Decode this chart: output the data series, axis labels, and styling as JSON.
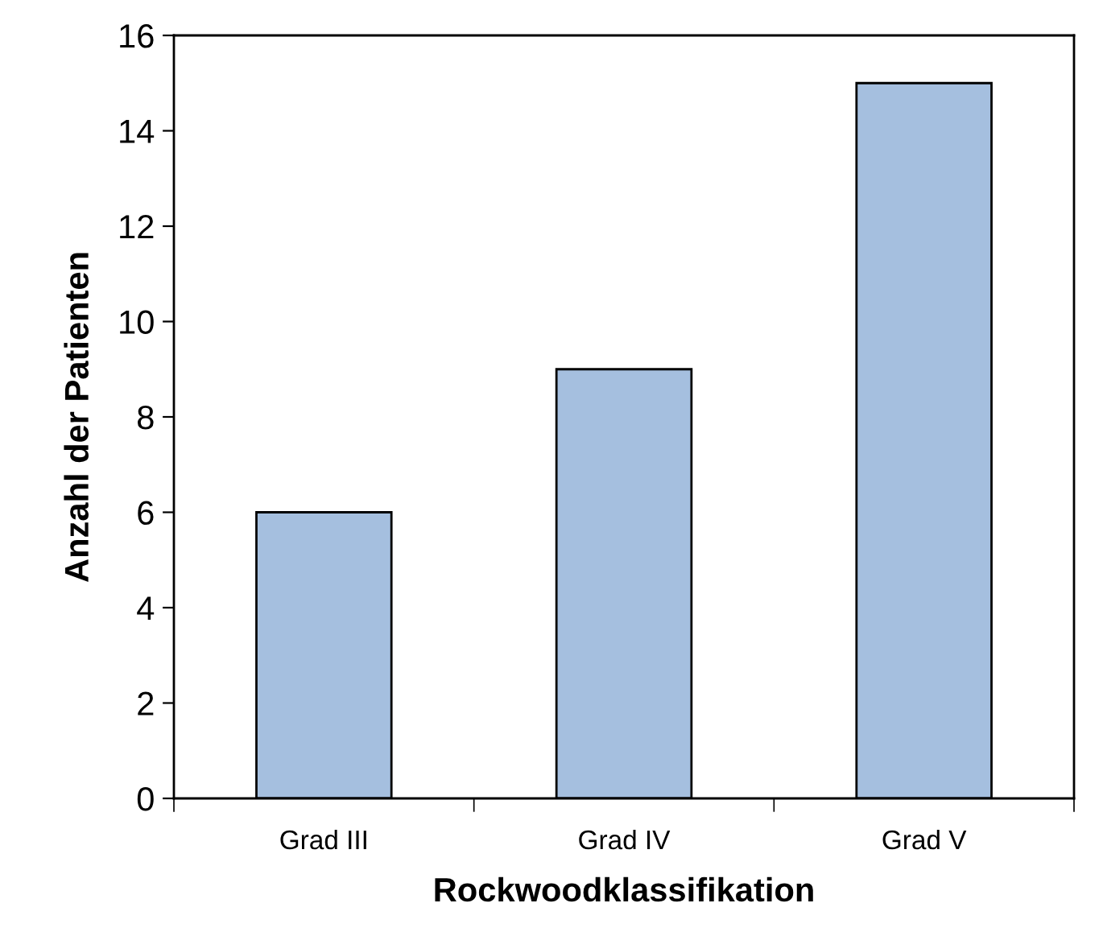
{
  "chart_data": {
    "type": "bar",
    "xlabel": "Rockwoodklassifikation",
    "ylabel": "Anzahl der Patienten",
    "categories": [
      "Grad III",
      "Grad IV",
      "Grad V"
    ],
    "values": [
      6,
      9,
      15
    ],
    "color": "#a5bfdf",
    "ylim": [
      0,
      16
    ],
    "yticks": [
      0,
      2,
      4,
      6,
      8,
      10,
      12,
      14,
      16
    ],
    "grid": false
  }
}
